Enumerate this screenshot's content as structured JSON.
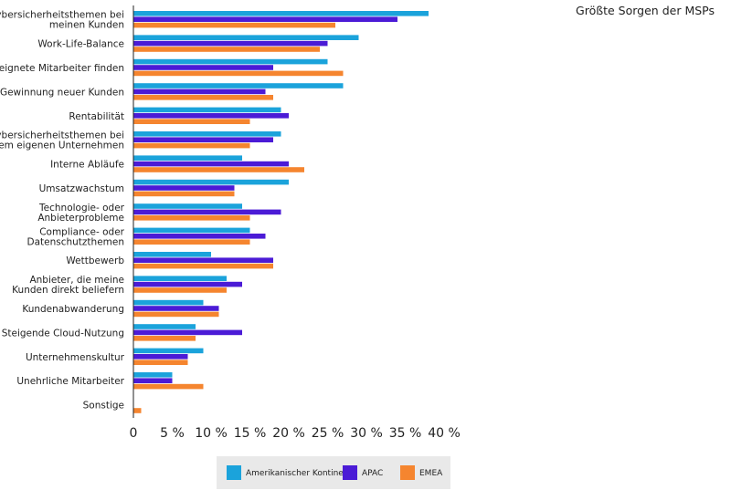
{
  "chart_data": {
    "type": "bar",
    "orientation": "horizontal",
    "title": "Größte Sorgen der MSPs",
    "categories": [
      "Cybersicherheitsthemen bei meinen Kunden",
      "Work-Life-Balance",
      "Geeignete Mitarbeiter finden",
      "Gewinnung neuer Kunden",
      "Rentabilität",
      "Cybersicherheitsthemen bei meinem eigenen Unternehmen",
      "Interne Abläufe",
      "Umsatzwachstum",
      "Technologie- oder Anbieterprobleme",
      "Compliance- oder Datenschutzthemen",
      "Wettbewerb",
      "Anbieter, die meine Kunden direkt beliefern",
      "Kundenabwanderung",
      "Steigende Cloud-Nutzung",
      "Unternehmenskultur",
      "Unehrliche Mitarbeiter",
      "Sonstige"
    ],
    "category_lines": [
      [
        "Cybersicherheitsthemen bei",
        "meinen Kunden"
      ],
      [
        "Work-Life-Balance"
      ],
      [
        "Geeignete Mitarbeiter finden"
      ],
      [
        "Gewinnung neuer Kunden"
      ],
      [
        "Rentabilität"
      ],
      [
        "Cybersicherheitsthemen bei",
        "meinem eigenen Unternehmen"
      ],
      [
        "Interne Abläufe"
      ],
      [
        "Umsatzwachstum"
      ],
      [
        "Technologie- oder",
        "Anbieterprobleme"
      ],
      [
        "Compliance- oder",
        "Datenschutzthemen"
      ],
      [
        "Wettbewerb"
      ],
      [
        "Anbieter, die meine",
        "Kunden direkt beliefern"
      ],
      [
        "Kundenabwanderung"
      ],
      [
        "Steigende Cloud-Nutzung"
      ],
      [
        "Unternehmenskultur"
      ],
      [
        "Unehrliche Mitarbeiter"
      ],
      [
        "Sonstige"
      ]
    ],
    "series": [
      {
        "name": "Amerikanischer Kontinent",
        "color": "#1BA3DB",
        "values": [
          38,
          29,
          25,
          27,
          19,
          19,
          14,
          20,
          14,
          15,
          10,
          12,
          9,
          8,
          9,
          5,
          0
        ]
      },
      {
        "name": "APAC",
        "color": "#4B1BD6",
        "values": [
          34,
          25,
          18,
          17,
          20,
          18,
          20,
          13,
          19,
          17,
          18,
          14,
          11,
          14,
          7,
          5,
          0
        ]
      },
      {
        "name": "EMEA",
        "color": "#F5852F",
        "values": [
          26,
          24,
          27,
          18,
          15,
          15,
          22,
          13,
          15,
          15,
          18,
          12,
          11,
          8,
          7,
          9,
          1
        ]
      }
    ],
    "xlim": [
      0,
      40
    ],
    "xticks": [
      0,
      5,
      10,
      15,
      20,
      25,
      30,
      35,
      40
    ],
    "xtick_labels": [
      "0",
      "5 %",
      "10 %",
      "15 %",
      "20 %",
      "25 %",
      "30 %",
      "35 %",
      "40 %"
    ],
    "legend_position": "bottom-center",
    "grid": false
  }
}
